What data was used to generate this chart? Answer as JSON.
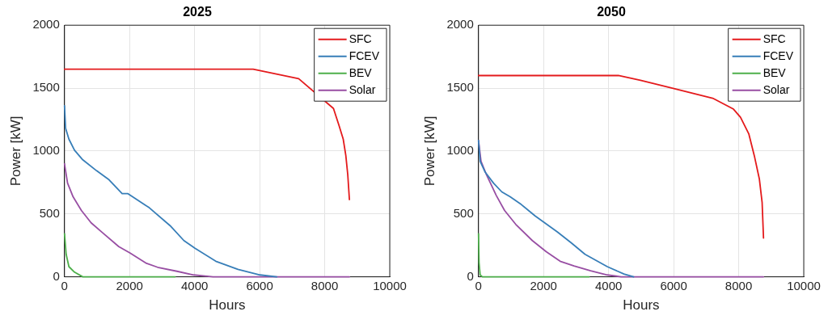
{
  "chart_data": [
    {
      "type": "line",
      "title": "2025",
      "xlabel": "Hours",
      "ylabel": "Power [kW]",
      "xlim": [
        0,
        10000
      ],
      "xticks": [
        0,
        2000,
        4000,
        6000,
        8000,
        10000
      ],
      "ylim": [
        0,
        2000
      ],
      "yticks": [
        0,
        500,
        1000,
        1500,
        2000
      ],
      "grid": true,
      "legend": "top right",
      "marker": "none",
      "line_style": "solid",
      "series": [
        {
          "name": "SFC",
          "color": "#e41a1c",
          "x": [
            0,
            5800,
            7200,
            8270,
            8440,
            8570,
            8650,
            8710,
            8760
          ],
          "values": [
            1650,
            1650,
            1575,
            1338,
            1203,
            1094,
            963,
            810,
            614
          ]
        },
        {
          "name": "FCEV",
          "color": "#377eb8",
          "x": [
            0,
            34,
            136,
            307,
            562,
            988,
            1371,
            1772,
            1942,
            2606,
            3245,
            3671,
            4012,
            4651,
            5332,
            6014,
            6525
          ],
          "values": [
            1359,
            1181,
            1094,
            1007,
            930,
            843,
            771,
            662,
            662,
            549,
            407,
            288,
            227,
            124,
            59,
            15,
            0
          ]
        },
        {
          "name": "BEV",
          "color": "#4daf4a",
          "x": [
            0,
            51,
            136,
            307,
            562,
            3400
          ],
          "values": [
            342,
            179,
            81,
            37,
            0,
            0
          ]
        },
        {
          "name": "Solar",
          "color": "#984ea3",
          "x": [
            0,
            94,
            264,
            520,
            818,
            1158,
            1670,
            2010,
            2521,
            2862,
            3458,
            3969,
            4566,
            8760
          ],
          "values": [
            898,
            745,
            636,
            527,
            429,
            353,
            240,
            190,
            107,
            76,
            44,
            15,
            0,
            0
          ]
        }
      ]
    },
    {
      "type": "line",
      "title": "2050",
      "xlabel": "Hours",
      "ylabel": "Power [kW]",
      "xlim": [
        0,
        10000
      ],
      "xticks": [
        0,
        2000,
        4000,
        6000,
        8000,
        10000
      ],
      "ylim": [
        0,
        2000
      ],
      "yticks": [
        0,
        500,
        1000,
        1500,
        2000
      ],
      "grid": true,
      "legend": "top right",
      "marker": "none",
      "line_style": "solid",
      "series": [
        {
          "name": "SFC",
          "color": "#e41a1c",
          "x": [
            0,
            4300,
            4980,
            6010,
            7200,
            7840,
            8055,
            8310,
            8480,
            8635,
            8720,
            8763
          ],
          "values": [
            1600,
            1600,
            1562,
            1497,
            1420,
            1333,
            1268,
            1137,
            963,
            778,
            593,
            309
          ]
        },
        {
          "name": "FCEV",
          "color": "#377eb8",
          "x": [
            0,
            51,
            205,
            461,
            717,
            973,
            1314,
            1741,
            2423,
            2850,
            3276,
            3959,
            4471,
            4770
          ],
          "values": [
            1083,
            919,
            832,
            745,
            675,
            636,
            575,
            484,
            357,
            270,
            179,
            81,
            22,
            0
          ]
        },
        {
          "name": "BEV",
          "color": "#4daf4a",
          "x": [
            0,
            17,
            51,
            120,
            3400
          ],
          "values": [
            342,
            113,
            15,
            0,
            0
          ]
        },
        {
          "name": "Solar",
          "color": "#984ea3",
          "x": [
            0,
            77,
            247,
            546,
            802,
            1143,
            1655,
            2082,
            2509,
            2935,
            3447,
            3959,
            4386,
            8760
          ],
          "values": [
            1083,
            919,
            810,
            647,
            527,
            418,
            288,
            200,
            124,
            87,
            48,
            15,
            0,
            0
          ]
        }
      ]
    }
  ]
}
